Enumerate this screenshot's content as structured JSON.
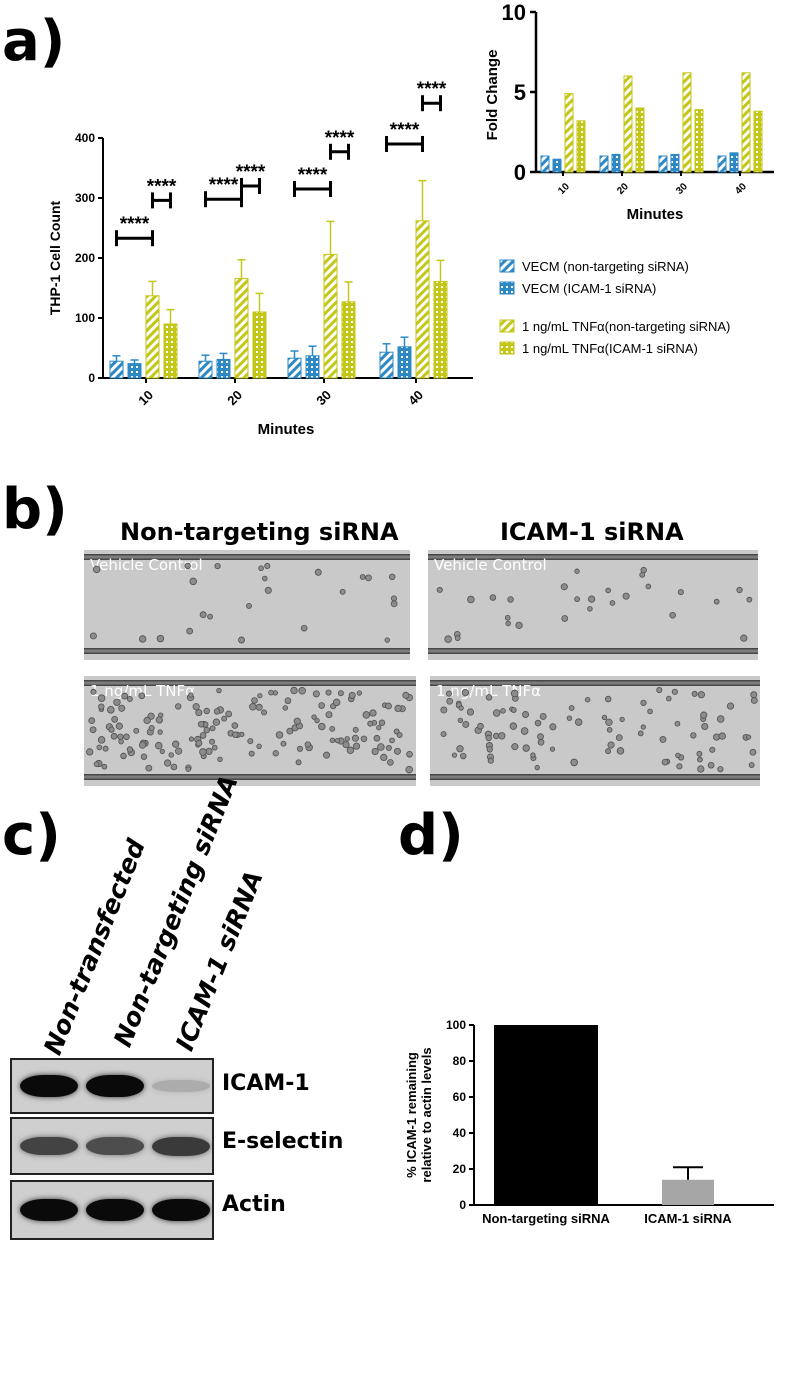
{
  "panels": {
    "a": "a)",
    "b": "b)",
    "c": "c)",
    "d": "d)"
  },
  "colors": {
    "blue": "#2d88c4",
    "yellow": "#c4c618",
    "black": "#000000",
    "gray": "#a6a6a6"
  },
  "chart_data": [
    {
      "id": "a_main",
      "type": "bar",
      "xlabel": "Minutes",
      "ylabel": "THP-1 Cell Count",
      "categories": [
        "10",
        "20",
        "30",
        "40"
      ],
      "ylim": [
        0,
        400
      ],
      "yticks": [
        "0",
        "100",
        "200",
        "300",
        "400"
      ],
      "series": [
        {
          "name": "VECM (non-targeting siRNA)",
          "color": "blue",
          "pattern": "hatch",
          "values": [
            28,
            28,
            33,
            43
          ],
          "errors": [
            9,
            10,
            12,
            14
          ]
        },
        {
          "name": "VECM (ICAM-1 siRNA)",
          "color": "blue",
          "pattern": "dots",
          "values": [
            24,
            31,
            37,
            52
          ],
          "errors": [
            6,
            10,
            16,
            16
          ]
        },
        {
          "name": "1 ng/mL TNFα(non-targeting siRNA)",
          "color": "yellow",
          "pattern": "hatch",
          "values": [
            137,
            166,
            206,
            262
          ],
          "errors": [
            24,
            31,
            55,
            67
          ]
        },
        {
          "name": "1 ng/mL TNFα(ICAM-1 siRNA)",
          "color": "yellow",
          "pattern": "dots",
          "values": [
            90,
            110,
            127,
            161
          ],
          "errors": [
            24,
            31,
            33,
            35
          ]
        }
      ],
      "significance": [
        {
          "label": "****",
          "pair": [
            1,
            3
          ],
          "level": 233
        },
        {
          "label": "****",
          "pair": [
            3,
            4
          ],
          "level": 296
        },
        {
          "label": "****",
          "pair": [
            1,
            3
          ],
          "level": 298
        },
        {
          "label": "****",
          "pair": [
            3,
            4
          ],
          "level": 320
        },
        {
          "label": "****",
          "pair": [
            1,
            3
          ],
          "level": 315
        },
        {
          "label": "****",
          "pair": [
            3,
            4
          ],
          "level": 377
        },
        {
          "label": "****",
          "pair": [
            1,
            3
          ],
          "level": 390
        },
        {
          "label": "****",
          "pair": [
            3,
            4
          ],
          "level": 458
        }
      ],
      "legend": "right"
    },
    {
      "id": "a_inset",
      "type": "bar",
      "xlabel": "Minutes",
      "ylabel": "Fold Change",
      "categories": [
        "10",
        "20",
        "30",
        "40"
      ],
      "ylim": [
        0,
        10
      ],
      "yticks": [
        "0",
        "5",
        "10"
      ],
      "series": [
        {
          "color": "blue",
          "pattern": "hatch",
          "values": [
            1.0,
            1.0,
            1.0,
            1.0
          ]
        },
        {
          "color": "blue",
          "pattern": "dots",
          "values": [
            0.8,
            1.1,
            1.1,
            1.2
          ]
        },
        {
          "color": "yellow",
          "pattern": "hatch",
          "values": [
            4.9,
            6.0,
            6.2,
            6.2
          ]
        },
        {
          "color": "yellow",
          "pattern": "dots",
          "values": [
            3.2,
            4.0,
            3.9,
            3.8
          ]
        }
      ]
    },
    {
      "id": "d",
      "type": "bar",
      "ylabel": "% ICAM-1 remaining relative to actin levels",
      "ylabel_lines": [
        "% ICAM-1 remaining",
        "relative to actin levels"
      ],
      "categories": [
        "Non-targeting siRNA",
        "ICAM-1 siRNA"
      ],
      "values": [
        100,
        14
      ],
      "errors": [
        0,
        7
      ],
      "bar_colors": [
        "black",
        "gray"
      ],
      "ylim": [
        0,
        100
      ],
      "yticks": [
        "0",
        "20",
        "40",
        "60",
        "80",
        "100"
      ]
    }
  ],
  "microscopy": {
    "col_left": "Non-targeting siRNA",
    "col_right": "ICAM-1 siRNA",
    "top_label": "Vehicle Control",
    "bottom_label": "1 ng/mL TNFα"
  },
  "western": {
    "lanes": [
      "Non-transfected",
      "Non-targeting siRNA",
      "ICAM-1 siRNA"
    ],
    "blots": [
      {
        "name": "ICAM-1",
        "intensity": [
          1.0,
          1.0,
          0.15
        ]
      },
      {
        "name": "E-selectin",
        "intensity": [
          0.7,
          0.65,
          0.75
        ]
      },
      {
        "name": "Actin",
        "intensity": [
          1.0,
          1.0,
          1.0
        ]
      }
    ]
  }
}
